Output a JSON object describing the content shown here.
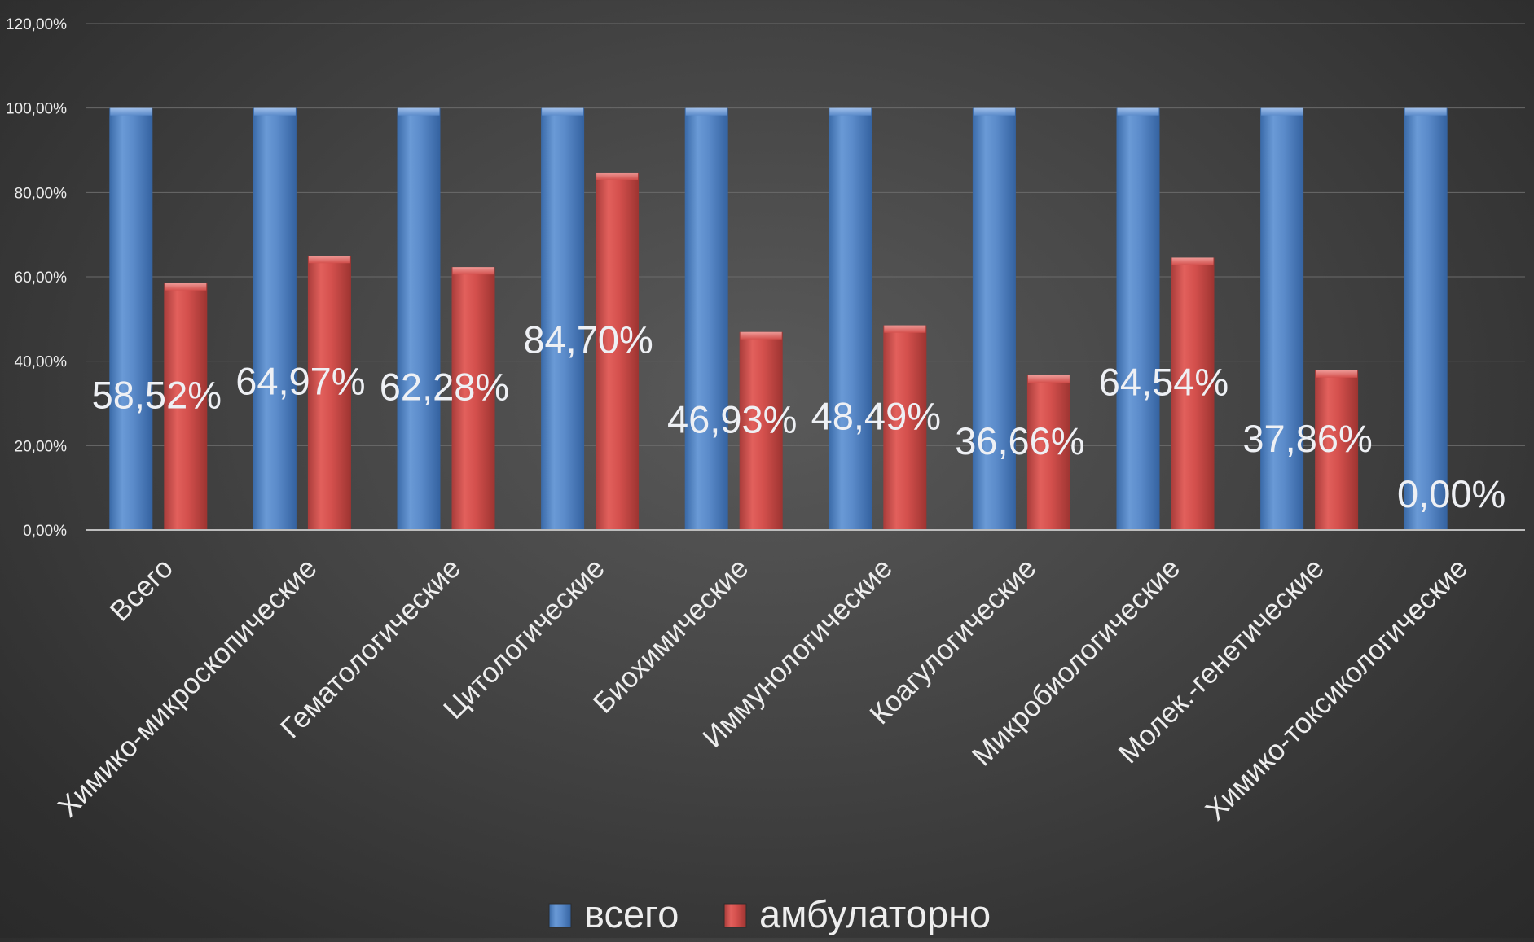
{
  "chart_data": {
    "type": "bar",
    "title": "",
    "xlabel": "",
    "ylabel": "",
    "ylim": [
      0,
      120
    ],
    "yticks": [
      "0,00%",
      "20,00%",
      "40,00%",
      "60,00%",
      "80,00%",
      "100,00%",
      "120,00%"
    ],
    "grid": true,
    "legend_position": "bottom",
    "categories": [
      "Всего",
      "Химико-микроскопические",
      "Гематологические",
      "Цитологические",
      "Биохимические",
      "Иммунологические",
      "Коагулогические",
      "Микробиологические",
      "Молек.-генетические",
      "Химико-токсикологические"
    ],
    "series": [
      {
        "name": "всего",
        "color": "#4f81bd",
        "values": [
          100,
          100,
          100,
          100,
          100,
          100,
          100,
          100,
          100,
          100
        ]
      },
      {
        "name": "амбулаторно",
        "color": "#c0504d",
        "values": [
          58.52,
          64.97,
          62.28,
          84.7,
          46.93,
          48.49,
          36.66,
          64.54,
          37.86,
          0
        ],
        "labels": [
          "58,52%",
          "64,97%",
          "62,28%",
          "84,70%",
          "46,93%",
          "48,49%",
          "36,66%",
          "64,54%",
          "37,86%",
          "0,00%"
        ]
      }
    ]
  }
}
